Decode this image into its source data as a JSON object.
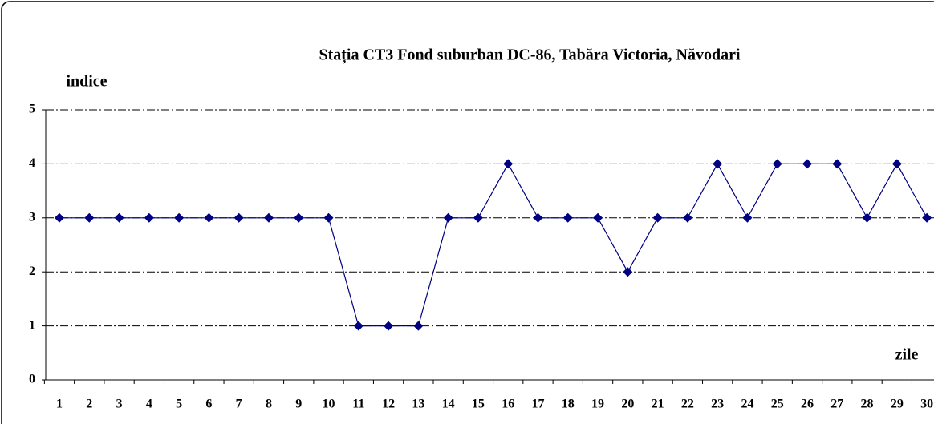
{
  "chart_data": {
    "type": "line",
    "title": "Stația CT3 Fond suburban DC-86, Tabăra Victoria, Năvodari",
    "y_label": "indice",
    "x_label": "zile",
    "categories": [
      "1",
      "2",
      "3",
      "4",
      "5",
      "6",
      "7",
      "8",
      "9",
      "10",
      "11",
      "12",
      "13",
      "14",
      "15",
      "16",
      "17",
      "18",
      "19",
      "20",
      "21",
      "22",
      "23",
      "24",
      "25",
      "26",
      "27",
      "28",
      "29",
      "30"
    ],
    "series": [
      {
        "name": "indice",
        "color": "#000080",
        "values": [
          3,
          3,
          3,
          3,
          3,
          3,
          3,
          3,
          3,
          3,
          1,
          1,
          1,
          3,
          3,
          4,
          3,
          3,
          3,
          2,
          3,
          3,
          4,
          3,
          4,
          4,
          4,
          3,
          4,
          3
        ]
      }
    ],
    "ylim": [
      0,
      5
    ],
    "yticks": [
      0,
      1,
      2,
      3,
      4,
      5
    ],
    "grid": true
  }
}
